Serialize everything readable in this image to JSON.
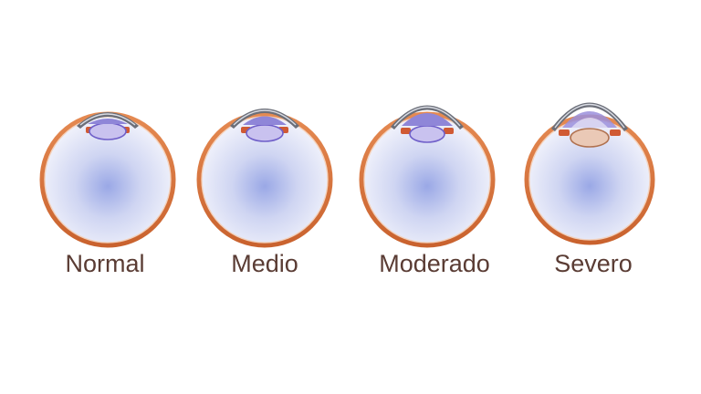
{
  "diagram": {
    "stages": [
      {
        "label": "Normal"
      },
      {
        "label": "Medio"
      },
      {
        "label": "Moderado"
      },
      {
        "label": "Severo"
      }
    ],
    "colors": {
      "background": "#ffffff",
      "label_text": "#5a3c34",
      "sclera_ring": "#d8743c",
      "ring_shadow": "#b35a2c",
      "globe_center": "#9aa8e6",
      "globe_edge": "#f4f5fc",
      "lens_fill": "#c9c2ef",
      "lens_stroke": "#6f5fc9",
      "lens_severe_fill": "#eac9b6",
      "lens_severe_stroke": "#b0714f",
      "cornea_band": "#6c6f79",
      "cornea_highlight": "#d9dce4",
      "aqueous": "#8f86d8",
      "iris": "#d05a34"
    }
  }
}
